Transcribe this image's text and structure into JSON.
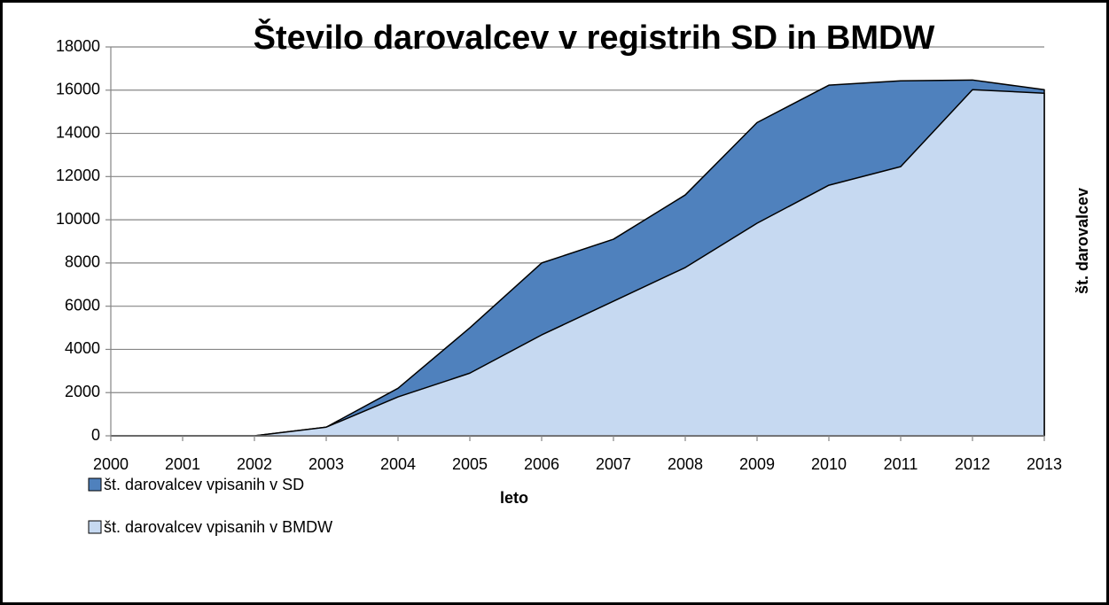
{
  "chart_data": {
    "type": "area",
    "title": "Število darovalcev v registrih SD in BMDW",
    "x_label": "leto",
    "y_label": "št. darovalcev",
    "x": [
      2000,
      2001,
      2002,
      2003,
      2004,
      2005,
      2006,
      2007,
      2008,
      2009,
      2010,
      2011,
      2012,
      2013
    ],
    "xlim": [
      2000,
      2013
    ],
    "ylim": [
      0,
      18000
    ],
    "yticks": [
      0,
      2000,
      4000,
      6000,
      8000,
      10000,
      12000,
      14000,
      16000,
      18000
    ],
    "grid": true,
    "legend": "bottom-left",
    "series": [
      {
        "name": "št. darovalcev vpisanih v SD",
        "color": "#4f81bd",
        "values": [
          0,
          0,
          0,
          400,
          2200,
          5000,
          8000,
          9100,
          11150,
          14500,
          16230,
          16430,
          16470,
          16020
        ]
      },
      {
        "name": "št. darovalcev vpisanih v BMDW",
        "color": "#c6d9f1",
        "values": [
          0,
          0,
          0,
          400,
          1800,
          2900,
          4670,
          6230,
          7790,
          9840,
          11600,
          12460,
          16020,
          15860
        ]
      }
    ]
  }
}
